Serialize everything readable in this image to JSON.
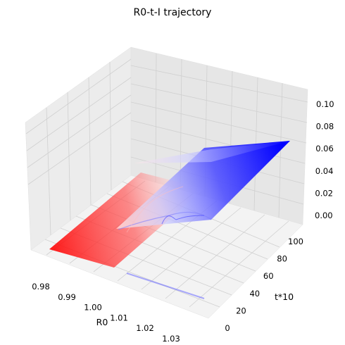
{
  "chart_data": {
    "type": "surface3d",
    "title": "R0-t-I trajectory",
    "xlabel": "R0",
    "ylabel": "t*10",
    "zlabel": "",
    "xlim": [
      0.975,
      1.035
    ],
    "ylim": [
      0,
      100
    ],
    "zlim": [
      0.0,
      0.1
    ],
    "x_ticks": [
      "0.98",
      "0.99",
      "1.00",
      "1.01",
      "1.02",
      "1.03"
    ],
    "y_ticks": [
      "0",
      "20",
      "40",
      "60",
      "80",
      "100"
    ],
    "z_ticks": [
      "0.00",
      "0.02",
      "0.04",
      "0.06",
      "0.08",
      "0.10"
    ],
    "grid": true,
    "colors": {
      "low_R0": "#ff0000",
      "high_R0": "#0000ff",
      "pane": "#f2f2f2",
      "grid": "#d3d3d3"
    }
  }
}
